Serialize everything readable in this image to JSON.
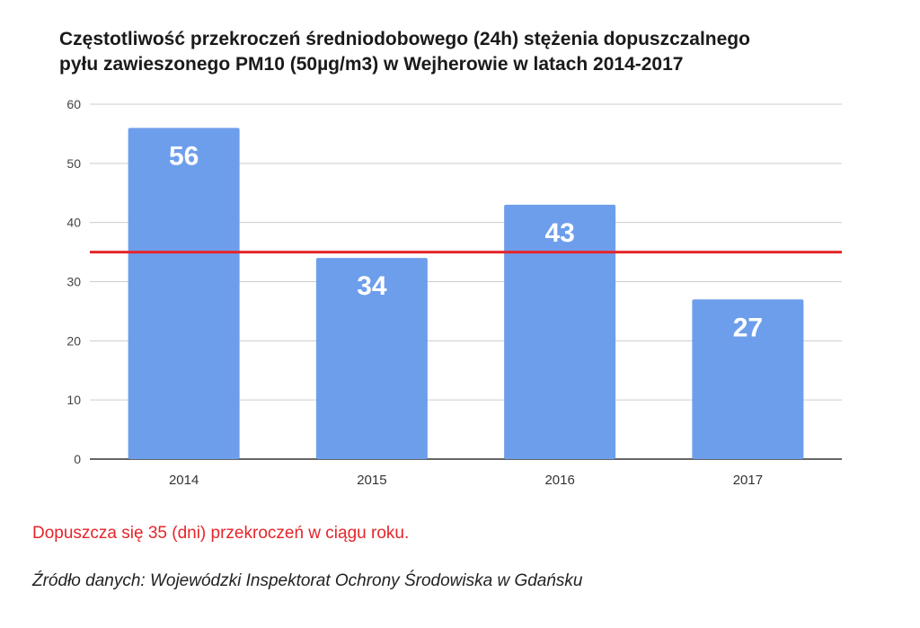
{
  "chart_data": {
    "type": "bar",
    "title_lines": [
      "Częstotliwość przekroczeń średniodobowego (24h) stężenia dopuszczalnego",
      "pyłu zawieszonego PM10 (50µg/m3) w Wejherowie w latach 2014-2017"
    ],
    "categories": [
      "2014",
      "2015",
      "2016",
      "2017"
    ],
    "values": [
      56,
      34,
      43,
      27
    ],
    "data_labels": [
      "56",
      "34",
      "43",
      "27"
    ],
    "ylim": [
      0,
      60
    ],
    "yticks": [
      "0",
      "10",
      "20",
      "30",
      "40",
      "50",
      "60"
    ],
    "grid": true,
    "legend": "none",
    "threshold": {
      "value": 35,
      "color": "#e5252a"
    },
    "bar_color": "#6d9eeb"
  },
  "note": "Dopuszcza się 35 (dni) przekroczeń w ciągu roku.",
  "source": "Źródło danych: Wojewódzki Inspektorat Ochrony Środowiska w Gdańsku"
}
